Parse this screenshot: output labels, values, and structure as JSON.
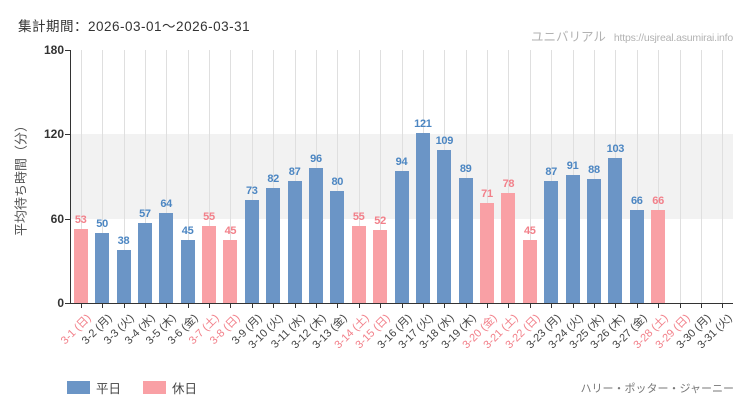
{
  "header": {
    "period_label": "集計期間：2026-03-01～2026-03-31"
  },
  "watermark": {
    "site_name": "ユニバリアル",
    "site_url": "https://usjreal.asumirai.info"
  },
  "footer": {
    "attraction_name": "ハリー・ポッター・ジャーニー"
  },
  "legend": {
    "items": [
      {
        "label": "平日",
        "color": "#6b95c6",
        "type": "weekday"
      },
      {
        "label": "休日",
        "color": "#f9a0a5",
        "type": "holiday"
      }
    ]
  },
  "chart_data": {
    "type": "bar",
    "title": "集計期間：2026-03-01～2026-03-31",
    "xlabel": "",
    "ylabel": "平均待ち時間（分）",
    "ylim": [
      0,
      180
    ],
    "yticks": [
      0,
      60,
      120,
      180
    ],
    "grid": true,
    "legend_position": "bottom-left",
    "bands": [
      [
        60,
        120
      ]
    ],
    "colors": {
      "weekday_bar": "#6b95c6",
      "holiday_bar": "#f9a0a5",
      "weekday_value_label": "#4c86c2",
      "holiday_value_label": "#f2808a",
      "weekday_axis_label": "#444444",
      "holiday_axis_label": "#f2808a",
      "band": "#f2f2f2",
      "gridline": "#dfdfdf",
      "axis": "#333333"
    },
    "categories": [
      "3-1 (日)",
      "3-2 (月)",
      "3-3 (火)",
      "3-4 (水)",
      "3-5 (木)",
      "3-6 (金)",
      "3-7 (土)",
      "3-8 (日)",
      "3-9 (月)",
      "3-10 (火)",
      "3-11 (水)",
      "3-12 (木)",
      "3-13 (金)",
      "3-14 (土)",
      "3-15 (日)",
      "3-16 (月)",
      "3-17 (火)",
      "3-18 (水)",
      "3-19 (木)",
      "3-20 (金)",
      "3-21 (土)",
      "3-22 (日)",
      "3-23 (月)",
      "3-24 (火)",
      "3-25 (水)",
      "3-26 (木)",
      "3-27 (金)",
      "3-28 (土)",
      "3-29 (日)",
      "3-30 (月)",
      "3-31 (火)"
    ],
    "points": [
      {
        "date": "3-1 (日)",
        "day_type": "holiday",
        "value": 53
      },
      {
        "date": "3-2 (月)",
        "day_type": "weekday",
        "value": 50
      },
      {
        "date": "3-3 (火)",
        "day_type": "weekday",
        "value": 38
      },
      {
        "date": "3-4 (水)",
        "day_type": "weekday",
        "value": 57
      },
      {
        "date": "3-5 (木)",
        "day_type": "weekday",
        "value": 64
      },
      {
        "date": "3-6 (金)",
        "day_type": "weekday",
        "value": 45
      },
      {
        "date": "3-7 (土)",
        "day_type": "holiday",
        "value": 55
      },
      {
        "date": "3-8 (日)",
        "day_type": "holiday",
        "value": 45
      },
      {
        "date": "3-9 (月)",
        "day_type": "weekday",
        "value": 73
      },
      {
        "date": "3-10 (火)",
        "day_type": "weekday",
        "value": 82
      },
      {
        "date": "3-11 (水)",
        "day_type": "weekday",
        "value": 87
      },
      {
        "date": "3-12 (木)",
        "day_type": "weekday",
        "value": 96
      },
      {
        "date": "3-13 (金)",
        "day_type": "weekday",
        "value": 80
      },
      {
        "date": "3-14 (土)",
        "day_type": "holiday",
        "value": 55
      },
      {
        "date": "3-15 (日)",
        "day_type": "holiday",
        "value": 52
      },
      {
        "date": "3-16 (月)",
        "day_type": "weekday",
        "value": 94
      },
      {
        "date": "3-17 (火)",
        "day_type": "weekday",
        "value": 121
      },
      {
        "date": "3-18 (水)",
        "day_type": "weekday",
        "value": 109
      },
      {
        "date": "3-19 (木)",
        "day_type": "weekday",
        "value": 89
      },
      {
        "date": "3-20 (金)",
        "day_type": "holiday",
        "value": 71
      },
      {
        "date": "3-21 (土)",
        "day_type": "holiday",
        "value": 78
      },
      {
        "date": "3-22 (日)",
        "day_type": "holiday",
        "value": 45
      },
      {
        "date": "3-23 (月)",
        "day_type": "weekday",
        "value": 87
      },
      {
        "date": "3-24 (火)",
        "day_type": "weekday",
        "value": 91
      },
      {
        "date": "3-25 (水)",
        "day_type": "weekday",
        "value": 88
      },
      {
        "date": "3-26 (木)",
        "day_type": "weekday",
        "value": 103
      },
      {
        "date": "3-27 (金)",
        "day_type": "weekday",
        "value": 66
      },
      {
        "date": "3-28 (土)",
        "day_type": "holiday",
        "value": 66
      },
      {
        "date": "3-29 (日)",
        "day_type": "holiday",
        "value": null
      },
      {
        "date": "3-30 (月)",
        "day_type": "weekday",
        "value": null
      },
      {
        "date": "3-31 (火)",
        "day_type": "weekday",
        "value": null
      }
    ]
  }
}
